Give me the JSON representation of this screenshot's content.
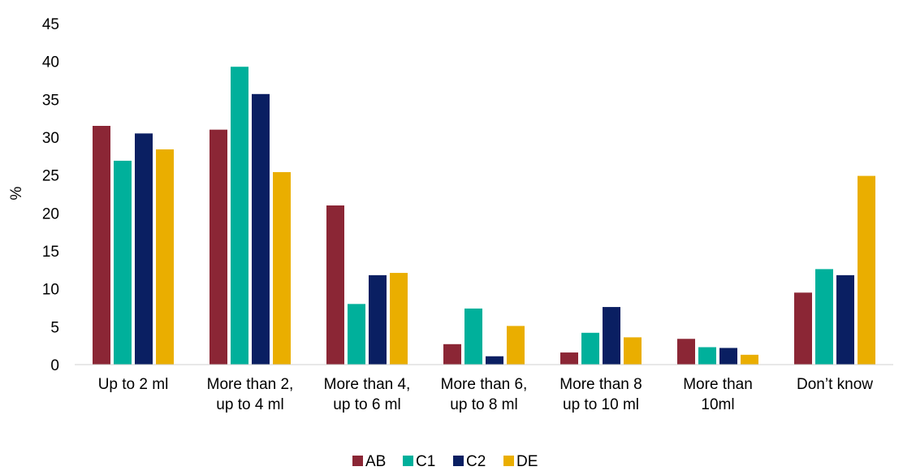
{
  "chart_data": {
    "type": "bar",
    "title": "",
    "xlabel": "",
    "ylabel": "%",
    "ylim": [
      0,
      45
    ],
    "yticks": [
      "0",
      "5",
      "10",
      "15",
      "20",
      "25",
      "30",
      "35",
      "40",
      "45"
    ],
    "grid": false,
    "legend_position": "bottom",
    "categories": [
      [
        "Up to 2 ml"
      ],
      [
        "More than 2,",
        "up to 4 ml"
      ],
      [
        "More than 4,",
        "up to 6 ml"
      ],
      [
        "More than 6,",
        "up to 8 ml"
      ],
      [
        "More than 8",
        "up to 10 ml"
      ],
      [
        "More than",
        "10ml"
      ],
      [
        "Don’t know"
      ]
    ],
    "series": [
      {
        "name": "AB",
        "color": "#8B2635",
        "values": [
          31.5,
          31.0,
          21.0,
          2.7,
          1.6,
          3.4,
          9.5
        ]
      },
      {
        "name": "C1",
        "color": "#00B09B",
        "values": [
          26.9,
          39.3,
          8.0,
          7.4,
          4.2,
          2.3,
          12.6
        ]
      },
      {
        "name": "C2",
        "color": "#0A1F62",
        "values": [
          30.5,
          35.7,
          11.8,
          1.1,
          7.6,
          2.2,
          11.8
        ]
      },
      {
        "name": "DE",
        "color": "#EAAE00",
        "values": [
          28.4,
          25.4,
          12.1,
          5.1,
          3.6,
          1.3,
          24.9
        ]
      }
    ]
  }
}
